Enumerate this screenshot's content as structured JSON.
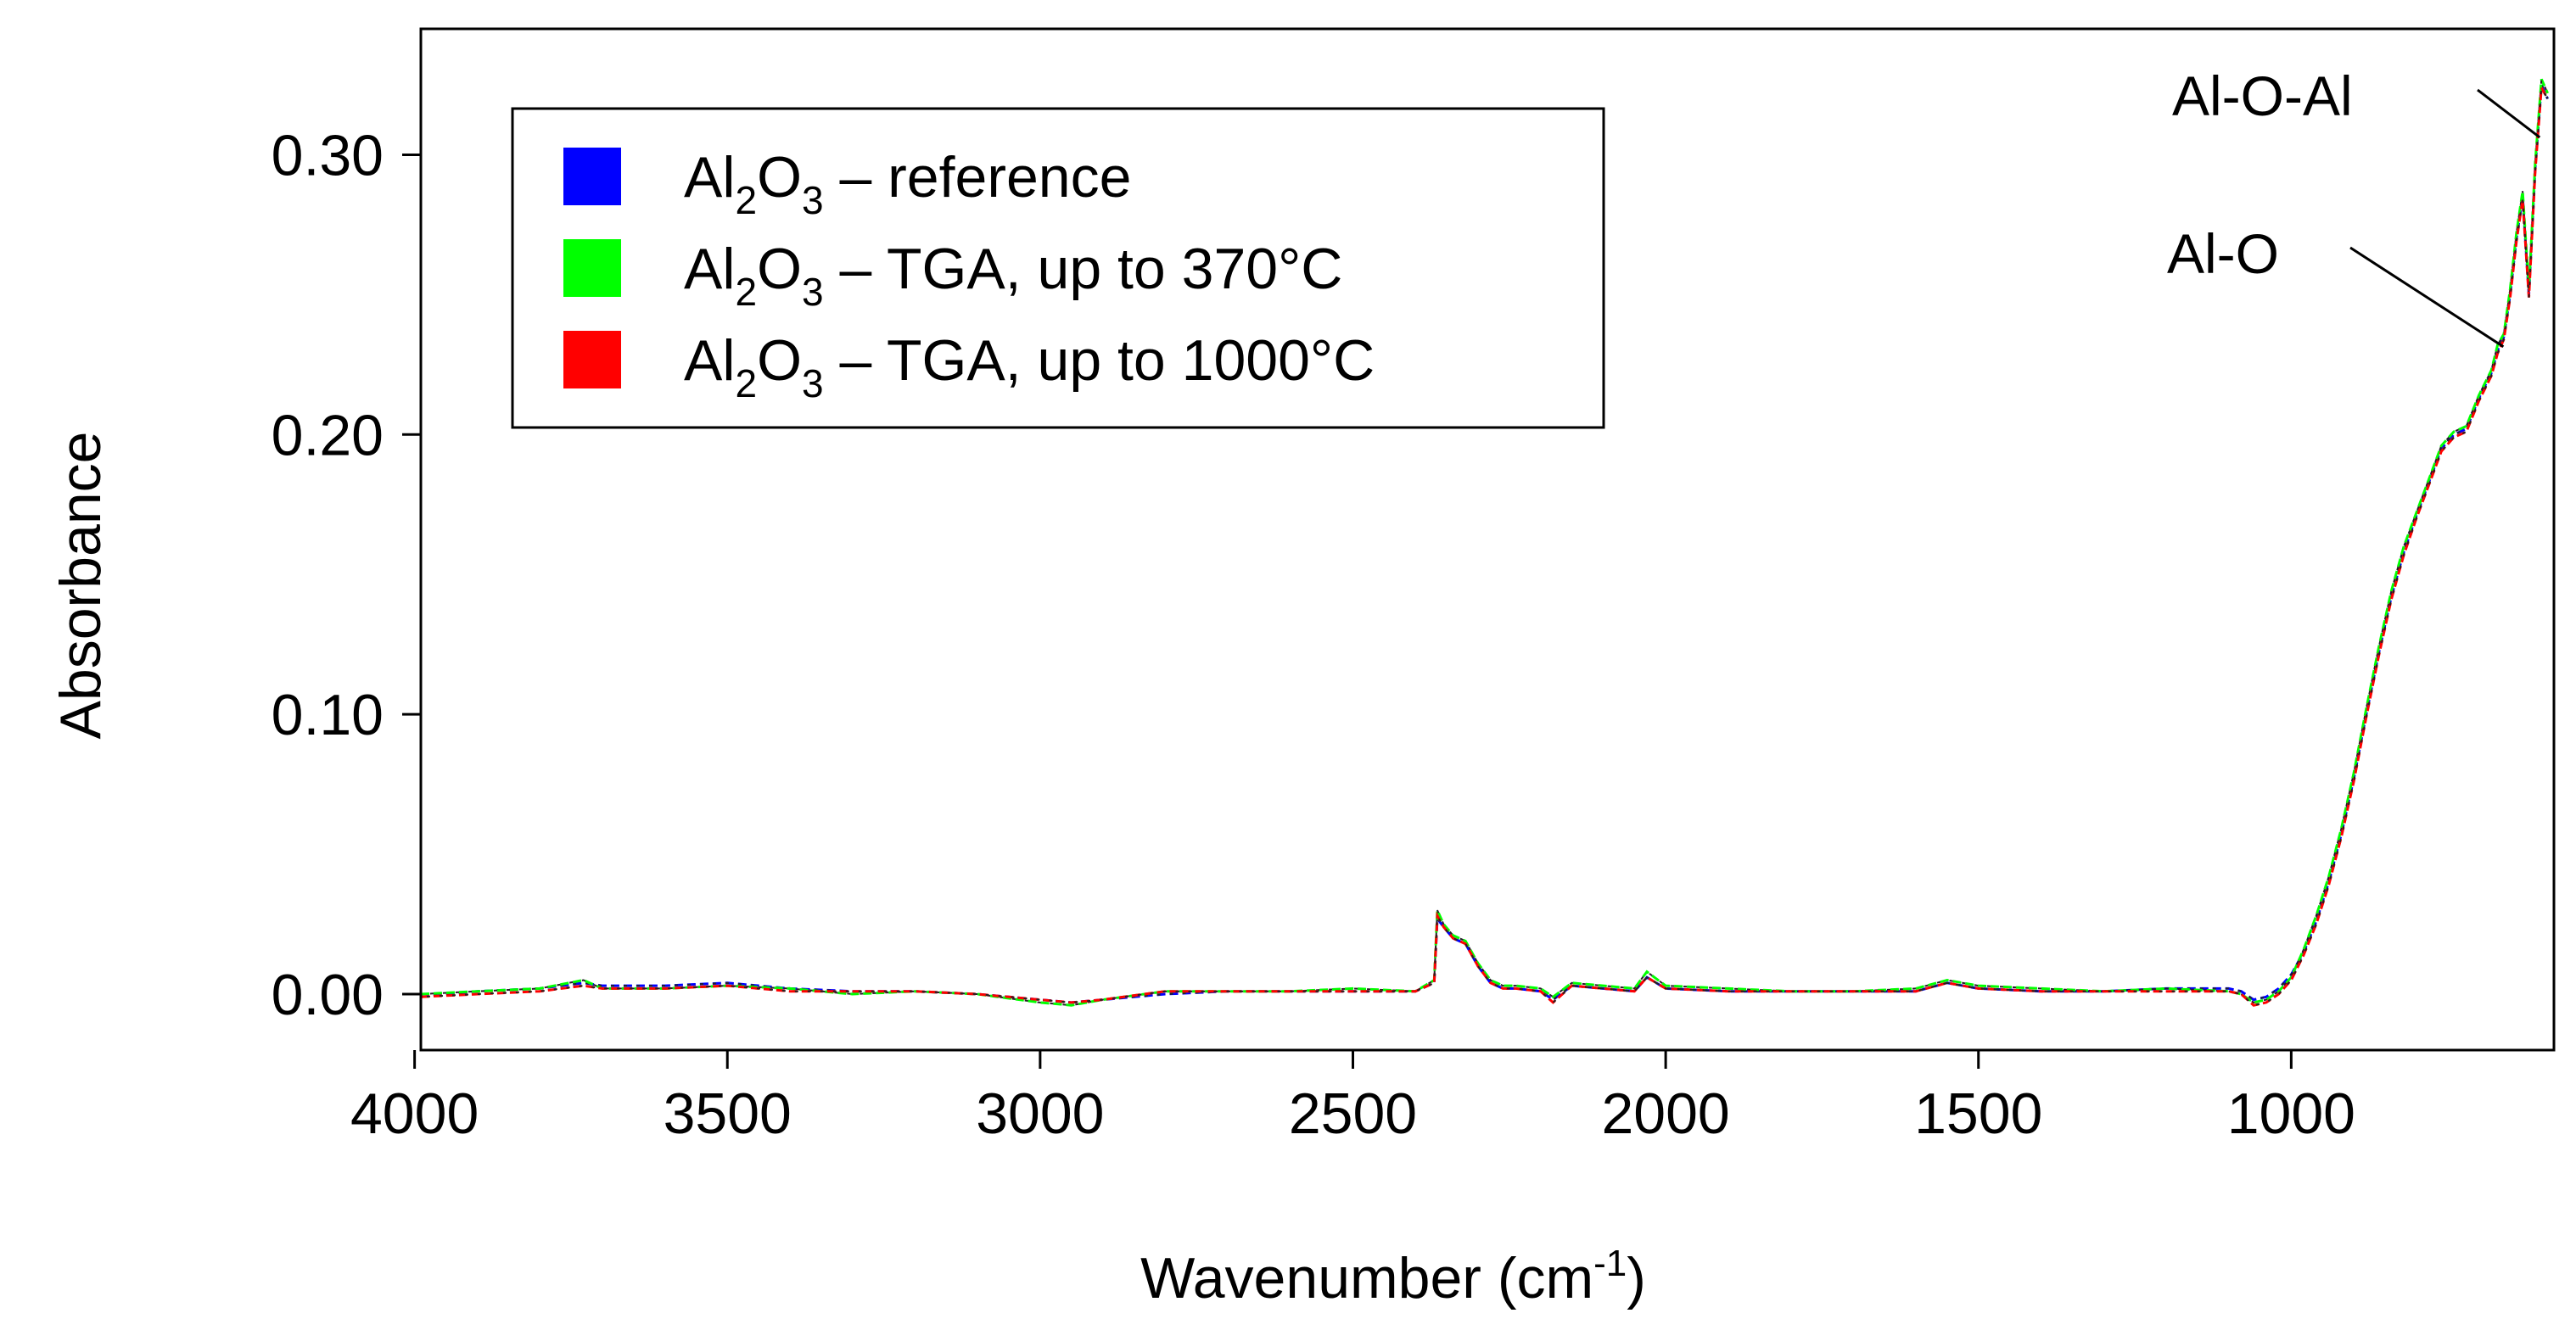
{
  "chart_data": {
    "type": "line",
    "title": "",
    "xlabel": "Wavenumber (cm",
    "xlabel_sup": "-1",
    "xlabel_end": ")",
    "ylabel": "Absorbance",
    "xlim": [
      3990,
      580
    ],
    "ylim": [
      -0.02,
      0.345
    ],
    "x_ticks": [
      4000,
      3500,
      3000,
      2500,
      2000,
      1500,
      1000
    ],
    "x_tick_labels": [
      "4000",
      "3500",
      "3000",
      "2500",
      "2000",
      "1500",
      "1000"
    ],
    "y_ticks": [
      0.0,
      0.1,
      0.2,
      0.3
    ],
    "y_tick_labels": [
      "0.00",
      "0.10",
      "0.20",
      "0.30"
    ],
    "grid": false,
    "legend_position": "top-left",
    "legend": [
      {
        "prefix": "Al",
        "sub1": "2",
        "mid": "O",
        "sub2": "3",
        "suffix": " – reference",
        "color": "#0000ff"
      },
      {
        "prefix": "Al",
        "sub1": "2",
        "mid": "O",
        "sub2": "3",
        "suffix": " – TGA, up to 370°C",
        "color": "#00ff00"
      },
      {
        "prefix": "Al",
        "sub1": "2",
        "mid": "O",
        "sub2": "3",
        "suffix": " – TGA, up to 1000°C",
        "color": "#ff0000"
      }
    ],
    "annotations": [
      {
        "text": "Al-O-Al",
        "x": 600,
        "y": 0.305
      },
      {
        "text": "Al-O",
        "x": 650,
        "y": 0.232
      }
    ],
    "series": [
      {
        "name": "Al2O3 – reference",
        "color": "#0000ff",
        "x": [
          3990,
          3900,
          3800,
          3730,
          3700,
          3600,
          3500,
          3400,
          3300,
          3200,
          3100,
          3000,
          2950,
          2900,
          2800,
          2700,
          2600,
          2500,
          2400,
          2370,
          2365,
          2355,
          2340,
          2320,
          2300,
          2280,
          2260,
          2240,
          2200,
          2180,
          2150,
          2100,
          2050,
          2030,
          2000,
          1900,
          1800,
          1700,
          1600,
          1550,
          1500,
          1400,
          1300,
          1200,
          1100,
          1080,
          1060,
          1040,
          1020,
          1000,
          980,
          960,
          940,
          920,
          900,
          880,
          860,
          840,
          820,
          800,
          780,
          760,
          740,
          720,
          700,
          680,
          670,
          660,
          650,
          640,
          630,
          620,
          610,
          600,
          590
        ],
        "y": [
          -0.001,
          0.001,
          0.002,
          0.004,
          0.003,
          0.003,
          0.004,
          0.002,
          0.001,
          0.001,
          0.0,
          -0.002,
          -0.003,
          -0.002,
          0.0,
          0.001,
          0.001,
          0.001,
          0.001,
          0.004,
          0.027,
          0.024,
          0.02,
          0.018,
          0.01,
          0.004,
          0.002,
          0.002,
          0.001,
          -0.002,
          0.003,
          0.002,
          0.001,
          0.006,
          0.002,
          0.001,
          0.001,
          0.001,
          0.001,
          0.004,
          0.002,
          0.001,
          0.001,
          0.002,
          0.002,
          0.001,
          -0.002,
          -0.001,
          0.002,
          0.007,
          0.015,
          0.026,
          0.04,
          0.057,
          0.077,
          0.1,
          0.122,
          0.142,
          0.158,
          0.171,
          0.183,
          0.195,
          0.2,
          0.202,
          0.213,
          0.222,
          0.23,
          0.235,
          0.25,
          0.27,
          0.285,
          0.25,
          0.295,
          0.325,
          0.32
        ]
      },
      {
        "name": "Al2O3 – TGA, up to 370°C",
        "color": "#00ff00",
        "x": [
          3990,
          3900,
          3800,
          3730,
          3700,
          3600,
          3500,
          3400,
          3300,
          3200,
          3100,
          3000,
          2950,
          2900,
          2800,
          2700,
          2600,
          2500,
          2400,
          2370,
          2365,
          2355,
          2340,
          2320,
          2300,
          2280,
          2260,
          2240,
          2200,
          2180,
          2150,
          2100,
          2050,
          2030,
          2000,
          1900,
          1800,
          1700,
          1600,
          1550,
          1500,
          1400,
          1300,
          1200,
          1100,
          1080,
          1060,
          1040,
          1020,
          1000,
          980,
          960,
          940,
          920,
          900,
          880,
          860,
          840,
          820,
          800,
          780,
          760,
          740,
          720,
          700,
          680,
          670,
          660,
          650,
          640,
          630,
          620,
          610,
          600,
          590
        ],
        "y": [
          0.0,
          0.001,
          0.002,
          0.005,
          0.002,
          0.002,
          0.003,
          0.002,
          0.0,
          0.001,
          0.0,
          -0.003,
          -0.004,
          -0.002,
          0.001,
          0.001,
          0.001,
          0.002,
          0.001,
          0.005,
          0.03,
          0.025,
          0.021,
          0.019,
          0.011,
          0.005,
          0.003,
          0.003,
          0.002,
          -0.001,
          0.004,
          0.003,
          0.002,
          0.008,
          0.003,
          0.002,
          0.001,
          0.001,
          0.002,
          0.005,
          0.003,
          0.002,
          0.001,
          0.002,
          0.001,
          0.0,
          -0.003,
          -0.002,
          0.001,
          0.006,
          0.016,
          0.028,
          0.042,
          0.059,
          0.079,
          0.102,
          0.124,
          0.144,
          0.16,
          0.172,
          0.184,
          0.196,
          0.201,
          0.203,
          0.214,
          0.223,
          0.232,
          0.236,
          0.252,
          0.272,
          0.287,
          0.252,
          0.297,
          0.327,
          0.322
        ]
      },
      {
        "name": "Al2O3 – TGA, up to 1000°C",
        "color": "#ff0000",
        "x": [
          3990,
          3900,
          3800,
          3730,
          3700,
          3600,
          3500,
          3400,
          3300,
          3200,
          3100,
          3000,
          2950,
          2900,
          2800,
          2700,
          2600,
          2500,
          2400,
          2370,
          2365,
          2355,
          2340,
          2320,
          2300,
          2280,
          2260,
          2240,
          2200,
          2180,
          2150,
          2100,
          2050,
          2030,
          2000,
          1900,
          1800,
          1700,
          1600,
          1550,
          1500,
          1400,
          1300,
          1200,
          1100,
          1080,
          1060,
          1040,
          1020,
          1000,
          980,
          960,
          940,
          920,
          900,
          880,
          860,
          840,
          820,
          800,
          780,
          760,
          740,
          720,
          700,
          680,
          670,
          660,
          650,
          640,
          630,
          620,
          610,
          600,
          590
        ],
        "y": [
          -0.001,
          0.0,
          0.001,
          0.003,
          0.002,
          0.002,
          0.003,
          0.001,
          0.001,
          0.001,
          0.0,
          -0.002,
          -0.003,
          -0.002,
          0.001,
          0.001,
          0.001,
          0.001,
          0.001,
          0.004,
          0.028,
          0.024,
          0.02,
          0.018,
          0.01,
          0.004,
          0.002,
          0.002,
          0.001,
          -0.003,
          0.003,
          0.002,
          0.001,
          0.006,
          0.002,
          0.001,
          0.001,
          0.001,
          0.001,
          0.004,
          0.002,
          0.001,
          0.001,
          0.001,
          0.001,
          0.0,
          -0.004,
          -0.003,
          0.0,
          0.005,
          0.014,
          0.025,
          0.039,
          0.056,
          0.076,
          0.099,
          0.121,
          0.141,
          0.157,
          0.17,
          0.182,
          0.194,
          0.199,
          0.201,
          0.212,
          0.221,
          0.229,
          0.234,
          0.249,
          0.269,
          0.284,
          0.249,
          0.294,
          0.324,
          0.32
        ]
      }
    ]
  }
}
